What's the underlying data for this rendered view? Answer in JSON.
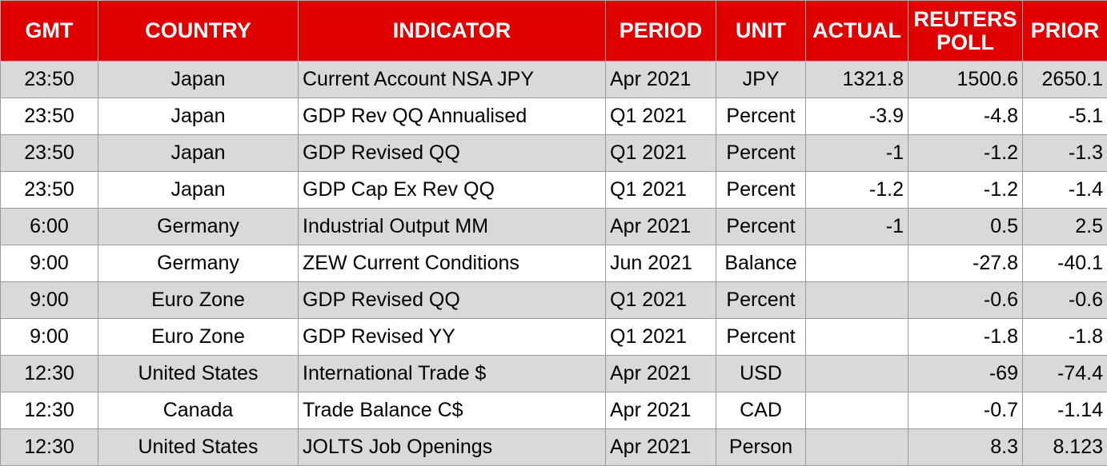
{
  "headers": {
    "gmt": "GMT",
    "country": "COUNTRY",
    "indicator": "INDICATOR",
    "period": "PERIOD",
    "unit": "UNIT",
    "actual": "ACTUAL",
    "reuters_poll": "REUTERS POLL",
    "prior": "PRIOR"
  },
  "rows": [
    {
      "gmt": "23:50",
      "country": "Japan",
      "indicator": "Current Account NSA JPY",
      "period": "Apr 2021",
      "unit": "JPY",
      "actual": "1321.8",
      "poll": "1500.6",
      "prior": "2650.1"
    },
    {
      "gmt": "23:50",
      "country": "Japan",
      "indicator": "GDP Rev QQ Annualised",
      "period": "Q1 2021",
      "unit": "Percent",
      "actual": "-3.9",
      "poll": "-4.8",
      "prior": "-5.1"
    },
    {
      "gmt": "23:50",
      "country": "Japan",
      "indicator": "GDP Revised QQ",
      "period": "Q1 2021",
      "unit": "Percent",
      "actual": "-1",
      "poll": "-1.2",
      "prior": "-1.3"
    },
    {
      "gmt": "23:50",
      "country": "Japan",
      "indicator": "GDP Cap Ex Rev QQ",
      "period": "Q1 2021",
      "unit": "Percent",
      "actual": "-1.2",
      "poll": "-1.2",
      "prior": "-1.4"
    },
    {
      "gmt": "6:00",
      "country": "Germany",
      "indicator": "Industrial Output MM",
      "period": "Apr 2021",
      "unit": "Percent",
      "actual": "-1",
      "poll": "0.5",
      "prior": "2.5"
    },
    {
      "gmt": "9:00",
      "country": "Germany",
      "indicator": "ZEW Current Conditions",
      "period": "Jun 2021",
      "unit": "Balance",
      "actual": "",
      "poll": "-27.8",
      "prior": "-40.1"
    },
    {
      "gmt": "9:00",
      "country": "Euro Zone",
      "indicator": "GDP Revised QQ",
      "period": "Q1 2021",
      "unit": "Percent",
      "actual": "",
      "poll": "-0.6",
      "prior": "-0.6"
    },
    {
      "gmt": "9:00",
      "country": "Euro Zone",
      "indicator": "GDP Revised YY",
      "period": "Q1 2021",
      "unit": "Percent",
      "actual": "",
      "poll": "-1.8",
      "prior": "-1.8"
    },
    {
      "gmt": "12:30",
      "country": "United States",
      "indicator": "International Trade $",
      "period": "Apr 2021",
      "unit": "USD",
      "actual": "",
      "poll": "-69",
      "prior": "-74.4"
    },
    {
      "gmt": "12:30",
      "country": "Canada",
      "indicator": "Trade Balance C$",
      "period": "Apr 2021",
      "unit": "CAD",
      "actual": "",
      "poll": "-0.7",
      "prior": "-1.14"
    },
    {
      "gmt": "12:30",
      "country": "United States",
      "indicator": "JOLTS Job Openings",
      "period": "Apr 2021",
      "unit": "Person",
      "actual": "",
      "poll": "8.3",
      "prior": "8.123"
    }
  ]
}
